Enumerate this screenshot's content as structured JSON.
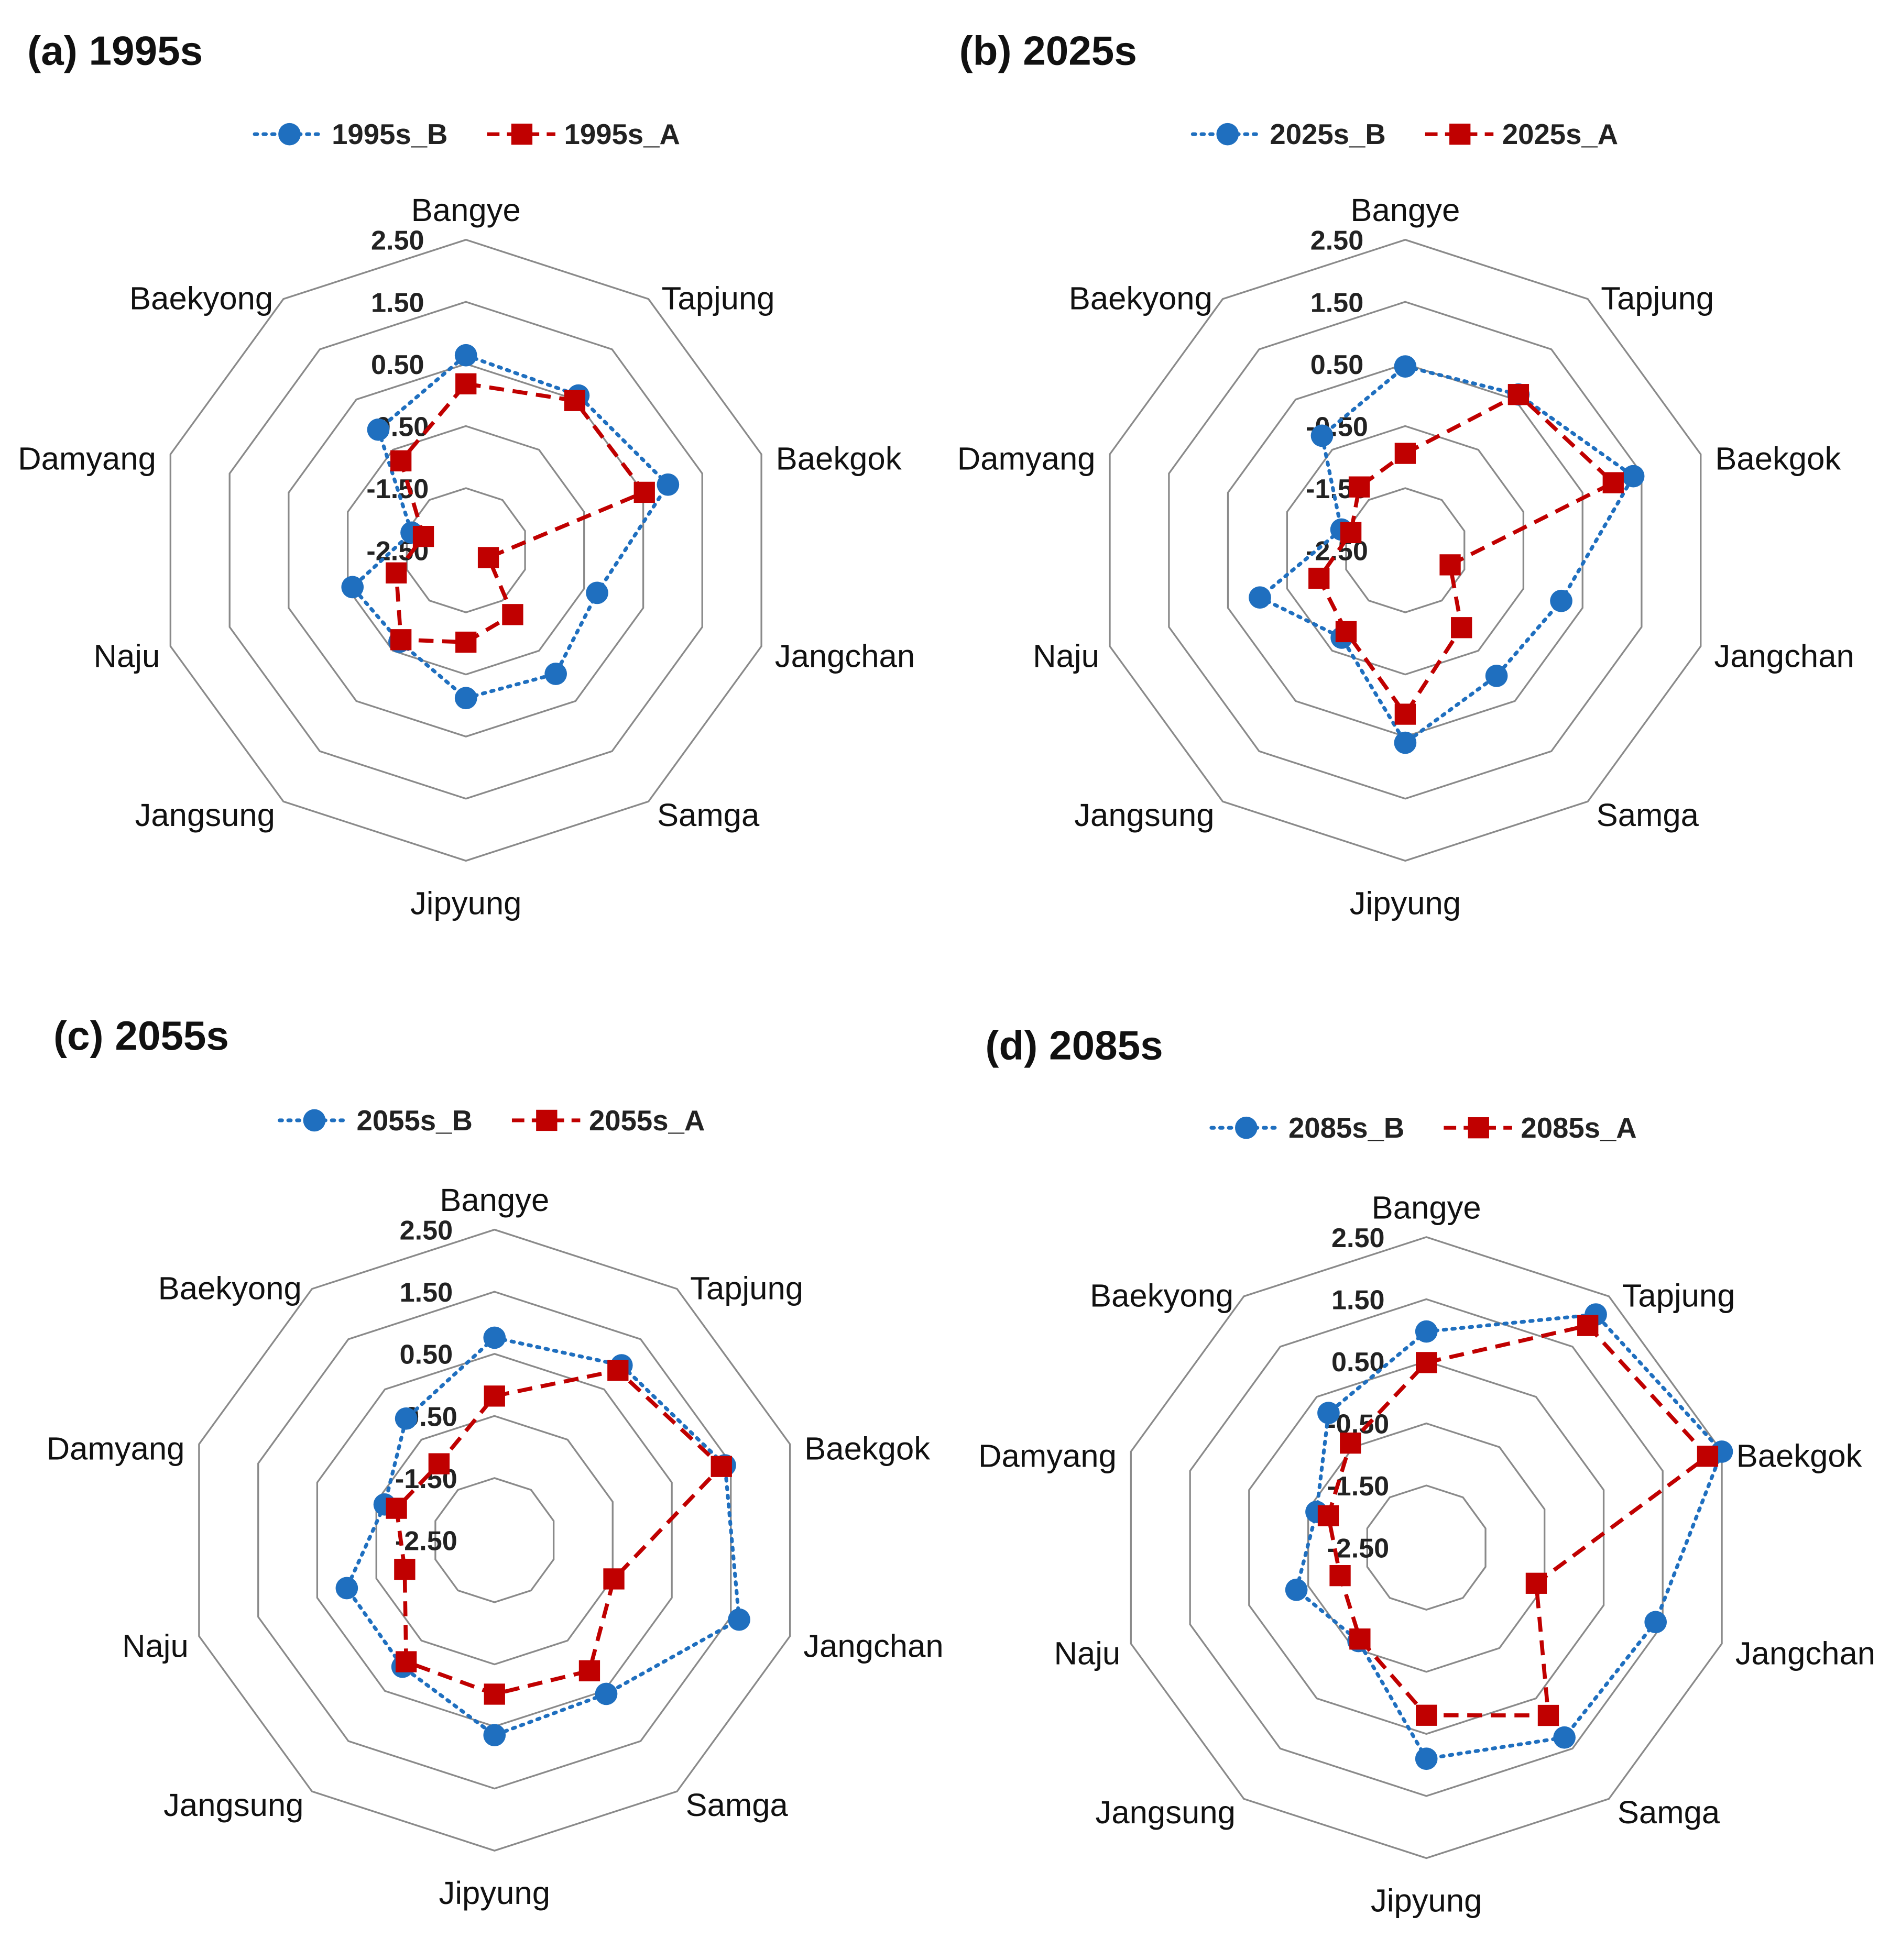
{
  "chart_data": [
    {
      "type": "radar",
      "title": "(a) 1995s",
      "categories": [
        "Bangye",
        "Tapjung",
        "Baekgok",
        "Jangchan",
        "Samga",
        "Jipyung",
        "Jangsung",
        "Naju",
        "Damyang",
        "Baekyong"
      ],
      "ticks": [
        "2.50",
        "1.50",
        "0.50",
        "-0.50",
        "-1.50",
        "-2.50"
      ],
      "rlim": [
        -2.5,
        2.5
      ],
      "legend_position": "top-center",
      "series": [
        {
          "name": "1995s_B",
          "color": "#1f6fbf",
          "style": "dotted-circle",
          "values": [
            0.64,
            0.58,
            0.92,
            -0.28,
            -0.04,
            -0.12,
            -0.68,
            -0.58,
            -1.58,
            -0.1
          ]
        },
        {
          "name": "1995s_A",
          "color": "#c00000",
          "style": "dashed-square",
          "values": [
            0.18,
            0.48,
            0.52,
            -2.12,
            -1.22,
            -1.02,
            -0.72,
            -1.32,
            -1.78,
            -0.72
          ]
        }
      ]
    },
    {
      "type": "radar",
      "title": "(b) 2025s",
      "categories": [
        "Bangye",
        "Tapjung",
        "Baekgok",
        "Jangchan",
        "Samga",
        "Jipyung",
        "Jangsung",
        "Naju",
        "Damyang",
        "Baekyong"
      ],
      "ticks": [
        "2.50",
        "1.50",
        "0.50",
        "-0.50",
        "-1.50",
        "-2.50"
      ],
      "rlim": [
        -2.5,
        2.5
      ],
      "legend_position": "top-center",
      "series": [
        {
          "name": "2025s_B",
          "color": "#1f6fbf",
          "style": "dotted-circle",
          "values": [
            0.46,
            0.6,
            1.36,
            0.14,
            0.0,
            0.6,
            -0.76,
            -0.04,
            -1.42,
            -0.22
          ]
        },
        {
          "name": "2025s_A",
          "color": "#c00000",
          "style": "dashed-square",
          "values": [
            -0.94,
            0.6,
            1.02,
            -1.74,
            -0.96,
            0.14,
            -0.88,
            -1.04,
            -1.58,
            -1.24
          ]
        }
      ]
    },
    {
      "type": "radar",
      "title": "(c) 2055s",
      "categories": [
        "Bangye",
        "Tapjung",
        "Baekgok",
        "Jangchan",
        "Samga",
        "Jipyung",
        "Jangsung",
        "Naju",
        "Damyang",
        "Baekyong"
      ],
      "ticks": [
        "2.50",
        "1.50",
        "0.50",
        "-0.50",
        "-1.50",
        "-2.50"
      ],
      "rlim": [
        -2.5,
        2.5
      ],
      "legend_position": "top-center",
      "series": [
        {
          "name": "2055s_B",
          "color": "#1f6fbf",
          "style": "dotted-circle",
          "values": [
            0.76,
            0.98,
            1.4,
            1.64,
            0.56,
            0.64,
            0.02,
            0.0,
            -0.64,
            -0.08
          ]
        },
        {
          "name": "2055s_A",
          "color": "#c00000",
          "style": "dashed-square",
          "values": [
            -0.18,
            0.88,
            1.34,
            -0.48,
            0.1,
            -0.02,
            -0.08,
            -0.98,
            -0.84,
            -0.98
          ]
        }
      ]
    },
    {
      "type": "radar",
      "title": "(d) 2085s",
      "categories": [
        "Bangye",
        "Tapjung",
        "Baekgok",
        "Jangchan",
        "Samga",
        "Jipyung",
        "Jangsung",
        "Naju",
        "Damyang",
        "Baekyong"
      ],
      "ticks": [
        "2.50",
        "1.50",
        "0.50",
        "-0.50",
        "-1.50",
        "-2.50"
      ],
      "rlim": [
        -2.5,
        2.5
      ],
      "legend_position": "top-center",
      "series": [
        {
          "name": "2085s_B",
          "color": "#1f6fbf",
          "style": "dotted-circle",
          "values": [
            0.98,
            2.14,
            2.5,
            1.38,
            1.28,
            0.9,
            -0.64,
            -0.3,
            -0.64,
            0.18
          ]
        },
        {
          "name": "2085s_A",
          "color": "#c00000",
          "style": "dashed-square",
          "values": [
            0.48,
            1.92,
            2.26,
            -0.64,
            0.84,
            0.2,
            -0.68,
            -1.04,
            -0.84,
            -0.42
          ]
        }
      ]
    }
  ]
}
